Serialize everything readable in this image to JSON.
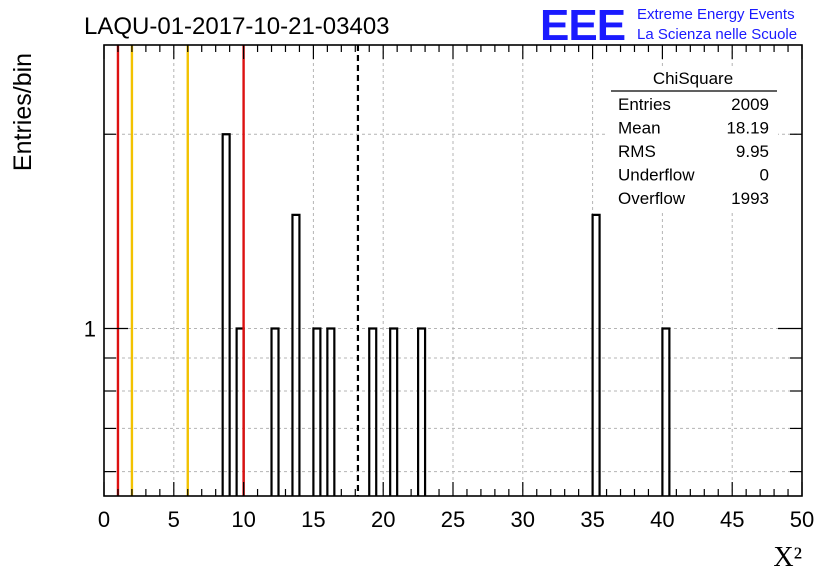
{
  "header": {
    "run_title": "LAQU-01-2017-10-21-03403",
    "logo_text": "EEE",
    "logo_line1": "Extreme Energy Events",
    "logo_line2": "La Scienza nelle Scuole"
  },
  "stats_box": {
    "title": "ChiSquare",
    "rows": [
      {
        "label": "Entries",
        "value": "2009"
      },
      {
        "label": "Mean",
        "value": "18.19"
      },
      {
        "label": "RMS",
        "value": "9.95"
      },
      {
        "label": "Underflow",
        "value": "0"
      },
      {
        "label": "Overflow",
        "value": "1993"
      }
    ]
  },
  "colors": {
    "histogram": "#000000",
    "red_line": "#dd1111",
    "yellow_line": "#f2c200",
    "mean_line": "#000000",
    "grid": "#b4b4b4",
    "logo": "#1a1aff"
  },
  "chart_data": {
    "type": "bar",
    "histogram_name": "ChiSquare",
    "xlabel": "X²",
    "ylabel": "Entries/bin",
    "xlim": [
      0,
      50
    ],
    "ylim": [
      0.55,
      2.75
    ],
    "log_y": true,
    "grid": true,
    "bin_width": 0.5,
    "x_ticks": [
      0,
      5,
      10,
      15,
      20,
      25,
      30,
      35,
      40,
      45,
      50
    ],
    "y_tick_labels": [
      {
        "value": 1,
        "label": "1"
      }
    ],
    "bins": [
      {
        "x": 8.5,
        "count": 2
      },
      {
        "x": 9.5,
        "count": 1
      },
      {
        "x": 12.0,
        "count": 1
      },
      {
        "x": 13.5,
        "count": 1.5
      },
      {
        "x": 15.0,
        "count": 1
      },
      {
        "x": 16.0,
        "count": 1
      },
      {
        "x": 19.0,
        "count": 1
      },
      {
        "x": 20.5,
        "count": 1
      },
      {
        "x": 22.5,
        "count": 1
      },
      {
        "x": 35.0,
        "count": 1.5
      },
      {
        "x": 40.0,
        "count": 1
      }
    ],
    "vertical_lines": [
      {
        "x": 1.0,
        "color": "red"
      },
      {
        "x": 2.0,
        "color": "yellow"
      },
      {
        "x": 6.0,
        "color": "yellow"
      },
      {
        "x": 10.0,
        "color": "red"
      },
      {
        "x": 18.19,
        "color": "black-dashed"
      }
    ]
  }
}
